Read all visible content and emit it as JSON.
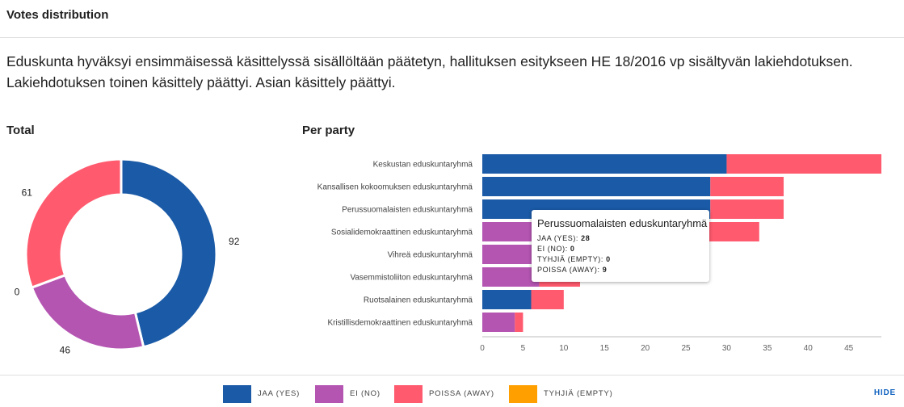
{
  "header": {
    "title": "Votes distribution"
  },
  "description": "Eduskunta hyväksyi ensimmäisessä käsittelyssä sisällöltään päätetyn, hallituksen esitykseen HE 18/2016 vp sisältyvän lakiehdotuksen. Lakiehdotuksen toinen käsittely päättyi. Asian käsittely päättyi.",
  "colors": {
    "yes": "#1a5aa6",
    "no": "#b455b2",
    "away": "#ff5a6e",
    "empty": "#ffa000"
  },
  "legend": [
    {
      "key": "yes",
      "label": "JAA (YES)"
    },
    {
      "key": "no",
      "label": "EI (NO)"
    },
    {
      "key": "away",
      "label": "POISSA (AWAY)"
    },
    {
      "key": "empty",
      "label": "TYHJIÄ (EMPTY)"
    }
  ],
  "hide_label": "HIDE",
  "tooltip": {
    "title": "Perussuomalaisten eduskuntaryhmä",
    "rows": [
      {
        "label": "JAA (YES):",
        "value": "28"
      },
      {
        "label": "EI (NO):",
        "value": "0"
      },
      {
        "label": "TYHJIÄ (EMPTY):",
        "value": "0"
      },
      {
        "label": "POISSA (AWAY):",
        "value": "9"
      }
    ]
  },
  "chart_data": [
    {
      "type": "pie",
      "title": "Total",
      "donut": true,
      "slices": [
        {
          "name": "JAA (YES)",
          "key": "yes",
          "value": 92
        },
        {
          "name": "EI (NO)",
          "key": "no",
          "value": 46
        },
        {
          "name": "TYHJIÄ (EMPTY)",
          "key": "empty",
          "value": 0
        },
        {
          "name": "POISSA (AWAY)",
          "key": "away",
          "value": 61
        }
      ]
    },
    {
      "type": "bar",
      "orientation": "horizontal",
      "stacked": true,
      "title": "Per party",
      "categories": [
        "Keskustan eduskuntaryhmä",
        "Kansallisen kokoomuksen eduskuntaryhmä",
        "Perussuomalaisten eduskuntaryhmä",
        "Sosialidemokraattinen eduskuntaryhmä",
        "Vihreä eduskuntaryhmä",
        "Vasemmistoliiton eduskuntaryhmä",
        "Ruotsalainen eduskuntaryhmä",
        "Kristillisdemokraattinen eduskuntaryhmä"
      ],
      "series": [
        {
          "name": "JAA (YES)",
          "key": "yes",
          "values": [
            30,
            28,
            28,
            0,
            0,
            0,
            6,
            0
          ]
        },
        {
          "name": "EI (NO)",
          "key": "no",
          "values": [
            0,
            0,
            0,
            26,
            15,
            7,
            0,
            4
          ]
        },
        {
          "name": "TYHJIÄ (EMPTY)",
          "key": "empty",
          "values": [
            0,
            0,
            0,
            0,
            0,
            0,
            0,
            0
          ]
        },
        {
          "name": "POISSA (AWAY)",
          "key": "away",
          "values": [
            19,
            9,
            9,
            8,
            0,
            5,
            4,
            1
          ]
        }
      ],
      "xlim": [
        0,
        49
      ],
      "xticks": [
        0,
        5,
        10,
        15,
        20,
        25,
        30,
        35,
        40,
        45
      ],
      "grid": false,
      "legend": "bottom"
    }
  ]
}
